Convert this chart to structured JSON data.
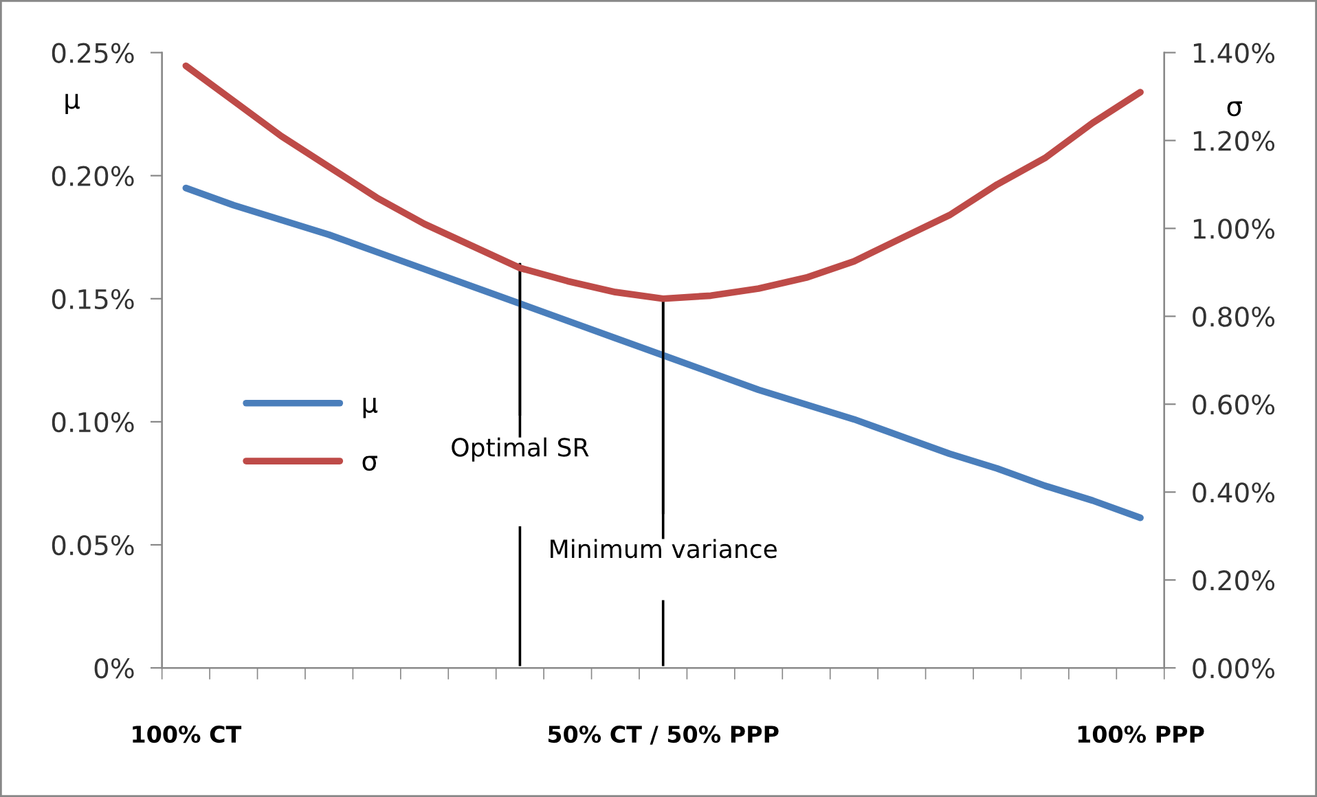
{
  "chart_data": {
    "type": "line",
    "categories": [
      "100% CT",
      null,
      null,
      null,
      null,
      null,
      null,
      null,
      null,
      null,
      "50% CT / 50% PPP",
      null,
      null,
      null,
      null,
      null,
      null,
      null,
      null,
      null,
      "100% PPP"
    ],
    "series": [
      {
        "name": "μ",
        "color": "#4a7ebb",
        "values": [
          0.195,
          0.188,
          0.182,
          0.176,
          0.169,
          0.162,
          0.155,
          0.148,
          0.141,
          0.134,
          0.127,
          0.12,
          0.113,
          0.107,
          0.101,
          0.094,
          0.087,
          0.081,
          0.074,
          0.068,
          0.061
        ]
      },
      {
        "name": "σ",
        "color": "#be4b48",
        "axis": "y2",
        "values": [
          1.37,
          1.29,
          1.21,
          1.14,
          1.07,
          1.01,
          0.96,
          0.91,
          0.88,
          0.855,
          0.84,
          0.847,
          0.863,
          0.888,
          0.925,
          0.978,
          1.03,
          1.1,
          1.16,
          1.24,
          1.31
        ]
      }
    ],
    "ylabel": "μ",
    "y2label": "σ",
    "ylim": [
      0,
      0.25
    ],
    "yticks": [
      {
        "value": 0,
        "label": "0%"
      },
      {
        "value": 0.05,
        "label": "0.05%"
      },
      {
        "value": 0.1,
        "label": "0.10%"
      },
      {
        "value": 0.15,
        "label": "0.15%"
      },
      {
        "value": 0.2,
        "label": "0.20%"
      },
      {
        "value": 0.25,
        "label": "0.25%"
      }
    ],
    "y2lim": [
      0,
      1.4
    ],
    "y2ticks": [
      {
        "value": 0,
        "label": "0.00%"
      },
      {
        "value": 0.2,
        "label": "0.20%"
      },
      {
        "value": 0.4,
        "label": "0.40%"
      },
      {
        "value": 0.6,
        "label": "0.60%"
      },
      {
        "value": 0.8,
        "label": "0.80%"
      },
      {
        "value": 1.0,
        "label": "1.00%"
      },
      {
        "value": 1.2,
        "label": "1.20%"
      },
      {
        "value": 1.4,
        "label": "1.40%"
      }
    ],
    "annotations": [
      {
        "text": "Optimal SR",
        "y": 0.164
      },
      {
        "text": "Minimum variance",
        "y": 0.15
      }
    ],
    "legend": "left",
    "grid": false,
    "marker": "none",
    "line_style": "solid"
  }
}
